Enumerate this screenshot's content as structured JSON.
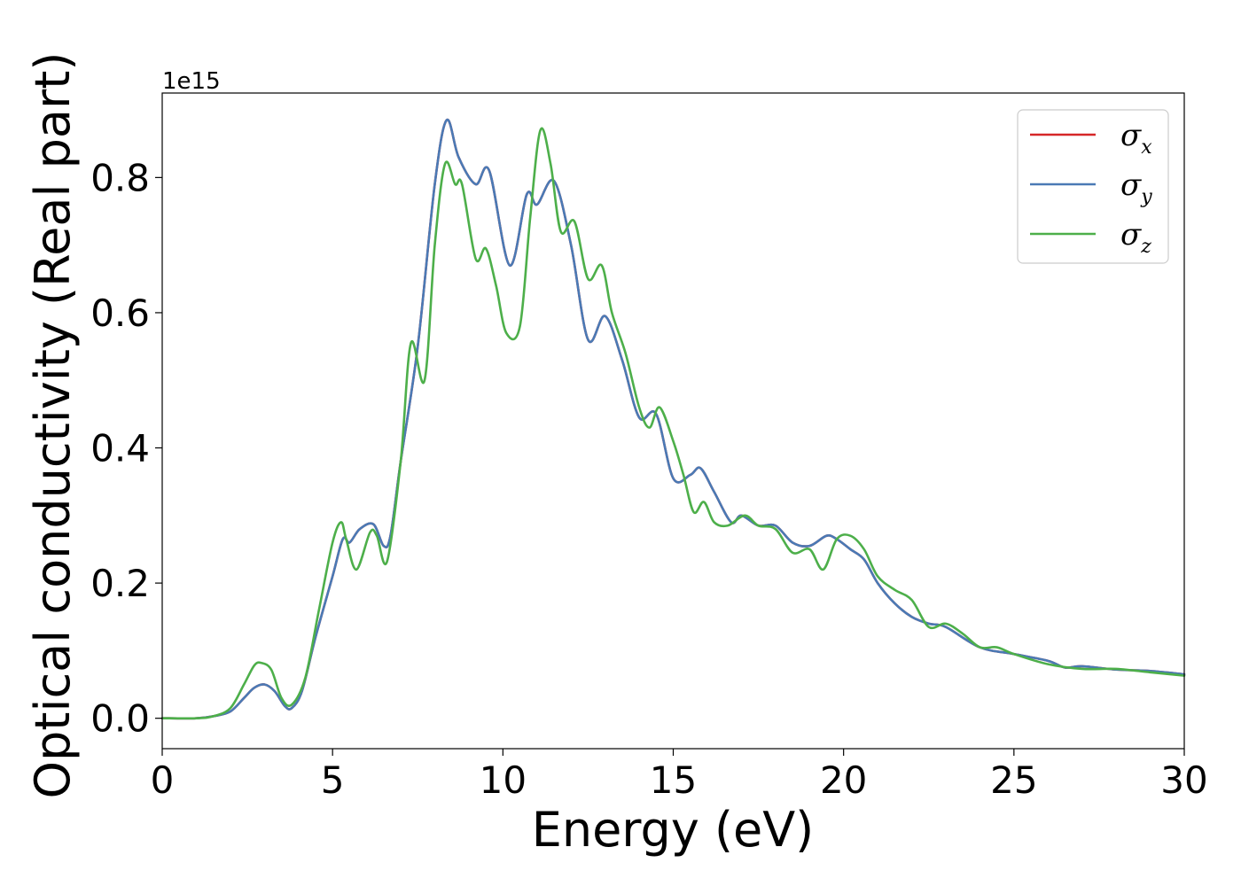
{
  "chart_data": {
    "type": "line",
    "xlabel": "Energy (eV)",
    "ylabel": "Optical conductivity (Real part)",
    "y_offset_label": "1e15",
    "xlim": [
      0,
      30
    ],
    "ylim": [
      -0.045,
      0.925
    ],
    "x_ticks": [
      0,
      5,
      10,
      15,
      20,
      25,
      30
    ],
    "x_tick_labels": [
      "0",
      "5",
      "10",
      "15",
      "20",
      "25",
      "30"
    ],
    "y_ticks": [
      0.0,
      0.2,
      0.4,
      0.6,
      0.8
    ],
    "y_tick_labels": [
      "0.0",
      "0.2",
      "0.4",
      "0.6",
      "0.8"
    ],
    "grid": false,
    "legend_position": "top-right",
    "colors": {
      "x": "#d62728",
      "y": "#4a7ab5",
      "z": "#4daf4a"
    },
    "series": [
      {
        "name": "σx",
        "symbol": "σ",
        "subscript": "x",
        "color": "#d62728",
        "x": [
          0,
          1,
          1.5,
          2,
          2.4,
          2.7,
          3.0,
          3.3,
          3.6,
          3.8,
          4.1,
          4.5,
          5.0,
          5.3,
          5.5,
          5.8,
          6.2,
          6.5,
          6.7,
          7.0,
          7.5,
          8.0,
          8.35,
          8.7,
          9.2,
          9.6,
          10.2,
          10.7,
          11.0,
          11.5,
          12.0,
          12.5,
          13.0,
          13.5,
          14.0,
          14.5,
          15.0,
          15.5,
          15.8,
          16.2,
          16.7,
          17.0,
          17.5,
          18.0,
          18.5,
          19.0,
          19.5,
          19.8,
          20.2,
          20.6,
          21.0,
          21.5,
          22.0,
          22.5,
          23.0,
          24.0,
          25.0,
          26.0,
          26.5,
          27.0,
          28.0,
          29.0,
          30.0
        ],
        "y": [
          0.0,
          0.0,
          0.003,
          0.01,
          0.03,
          0.045,
          0.05,
          0.04,
          0.018,
          0.015,
          0.04,
          0.12,
          0.21,
          0.265,
          0.26,
          0.28,
          0.287,
          0.255,
          0.27,
          0.38,
          0.55,
          0.79,
          0.885,
          0.83,
          0.79,
          0.81,
          0.67,
          0.775,
          0.76,
          0.795,
          0.7,
          0.56,
          0.595,
          0.53,
          0.445,
          0.45,
          0.355,
          0.36,
          0.37,
          0.335,
          0.29,
          0.3,
          0.285,
          0.285,
          0.26,
          0.255,
          0.27,
          0.265,
          0.25,
          0.235,
          0.2,
          0.17,
          0.15,
          0.14,
          0.135,
          0.105,
          0.095,
          0.085,
          0.075,
          0.077,
          0.072,
          0.07,
          0.065
        ]
      },
      {
        "name": "σy",
        "symbol": "σ",
        "subscript": "y",
        "color": "#4a7ab5",
        "x": [
          0,
          1,
          1.5,
          2,
          2.4,
          2.7,
          3.0,
          3.3,
          3.6,
          3.8,
          4.1,
          4.5,
          5.0,
          5.3,
          5.5,
          5.8,
          6.2,
          6.5,
          6.7,
          7.0,
          7.5,
          8.0,
          8.35,
          8.7,
          9.2,
          9.6,
          10.2,
          10.7,
          11.0,
          11.5,
          12.0,
          12.5,
          13.0,
          13.5,
          14.0,
          14.5,
          15.0,
          15.5,
          15.8,
          16.2,
          16.7,
          17.0,
          17.5,
          18.0,
          18.5,
          19.0,
          19.5,
          19.8,
          20.2,
          20.6,
          21.0,
          21.5,
          22.0,
          22.5,
          23.0,
          24.0,
          25.0,
          26.0,
          26.5,
          27.0,
          28.0,
          29.0,
          30.0
        ],
        "y": [
          0.0,
          0.0,
          0.003,
          0.01,
          0.03,
          0.045,
          0.05,
          0.04,
          0.018,
          0.015,
          0.04,
          0.12,
          0.21,
          0.265,
          0.26,
          0.28,
          0.287,
          0.255,
          0.27,
          0.38,
          0.55,
          0.79,
          0.885,
          0.83,
          0.79,
          0.81,
          0.67,
          0.775,
          0.76,
          0.795,
          0.7,
          0.56,
          0.595,
          0.53,
          0.445,
          0.45,
          0.355,
          0.36,
          0.37,
          0.335,
          0.29,
          0.3,
          0.285,
          0.285,
          0.26,
          0.255,
          0.27,
          0.265,
          0.25,
          0.235,
          0.2,
          0.17,
          0.15,
          0.14,
          0.135,
          0.105,
          0.095,
          0.085,
          0.075,
          0.077,
          0.072,
          0.07,
          0.065
        ]
      },
      {
        "name": "σz",
        "symbol": "σ",
        "subscript": "z",
        "color": "#4daf4a",
        "x": [
          0,
          1,
          1.5,
          2,
          2.4,
          2.7,
          2.9,
          3.2,
          3.5,
          3.8,
          4.2,
          4.6,
          5.0,
          5.25,
          5.4,
          5.7,
          6.1,
          6.3,
          6.6,
          7.0,
          7.3,
          7.7,
          8.0,
          8.3,
          8.6,
          8.8,
          9.2,
          9.5,
          9.8,
          10.1,
          10.5,
          10.8,
          11.1,
          11.4,
          11.7,
          12.1,
          12.5,
          12.9,
          13.2,
          13.6,
          14.0,
          14.3,
          14.6,
          15.0,
          15.3,
          15.6,
          15.9,
          16.2,
          16.6,
          17.1,
          17.5,
          18.0,
          18.5,
          19.0,
          19.4,
          19.8,
          20.2,
          20.6,
          21.0,
          21.5,
          22.0,
          22.5,
          23.0,
          23.5,
          24.0,
          24.5,
          25.0,
          26.0,
          27.0,
          28.0,
          29.0,
          30.0
        ],
        "y": [
          0.0,
          0.0,
          0.003,
          0.015,
          0.05,
          0.078,
          0.082,
          0.072,
          0.03,
          0.02,
          0.06,
          0.16,
          0.26,
          0.29,
          0.265,
          0.22,
          0.275,
          0.27,
          0.232,
          0.38,
          0.555,
          0.5,
          0.7,
          0.82,
          0.79,
          0.79,
          0.68,
          0.695,
          0.64,
          0.57,
          0.58,
          0.74,
          0.87,
          0.82,
          0.72,
          0.735,
          0.65,
          0.67,
          0.6,
          0.54,
          0.46,
          0.43,
          0.46,
          0.41,
          0.36,
          0.305,
          0.32,
          0.29,
          0.285,
          0.3,
          0.285,
          0.28,
          0.245,
          0.25,
          0.22,
          0.265,
          0.27,
          0.25,
          0.21,
          0.19,
          0.175,
          0.135,
          0.14,
          0.125,
          0.105,
          0.105,
          0.095,
          0.08,
          0.073,
          0.073,
          0.068,
          0.063
        ]
      }
    ]
  }
}
